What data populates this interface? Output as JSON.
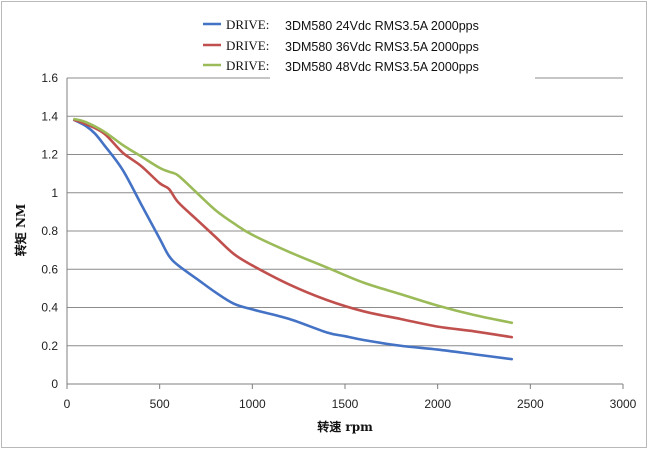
{
  "chart_data": {
    "type": "line",
    "title": "",
    "xlabel": "转速 rpm",
    "ylabel": "转矩 NM",
    "xlim": [
      0,
      3000
    ],
    "ylim": [
      0,
      1.6
    ],
    "x_ticks": [
      "0",
      "500",
      "1000",
      "1500",
      "2000",
      "2500",
      "3000"
    ],
    "y_ticks": [
      "0",
      "0.2",
      "0.4",
      "0.6",
      "0.8",
      "1",
      "1.2",
      "1.4",
      "1.6"
    ],
    "grid": "horizontal",
    "legend": "top-center",
    "series": [
      {
        "name": "DRIVE:",
        "label": "3DM580 24Vdc RMS3.5A 2000pps",
        "color": "#4472C4",
        "x": [
          40,
          100,
          150,
          200,
          300,
          400,
          500,
          550,
          600,
          700,
          800,
          900,
          1000,
          1200,
          1400,
          1500,
          1600,
          1800,
          2000,
          2200,
          2400
        ],
        "y": [
          1.38,
          1.35,
          1.31,
          1.25,
          1.12,
          0.94,
          0.76,
          0.67,
          0.62,
          0.55,
          0.48,
          0.42,
          0.39,
          0.34,
          0.27,
          0.25,
          0.23,
          0.2,
          0.18,
          0.155,
          0.13
        ]
      },
      {
        "name": "DRIVE:",
        "label": "3DM580 36Vdc RMS3.5A 2000pps",
        "color": "#C0504D",
        "x": [
          40,
          100,
          200,
          300,
          400,
          500,
          550,
          600,
          700,
          800,
          900,
          1000,
          1200,
          1400,
          1600,
          1800,
          2000,
          2200,
          2400
        ],
        "y": [
          1.38,
          1.36,
          1.31,
          1.21,
          1.14,
          1.05,
          1.02,
          0.95,
          0.86,
          0.77,
          0.68,
          0.62,
          0.52,
          0.44,
          0.38,
          0.34,
          0.3,
          0.275,
          0.245
        ]
      },
      {
        "name": "DRIVE:",
        "label": "3DM580 48Vdc RMS3.5A 2000pps",
        "color": "#9BBB59",
        "x": [
          40,
          100,
          200,
          300,
          400,
          500,
          550,
          600,
          700,
          800,
          900,
          1000,
          1200,
          1400,
          1600,
          1800,
          2000,
          2200,
          2400
        ],
        "y": [
          1.385,
          1.37,
          1.32,
          1.25,
          1.19,
          1.13,
          1.11,
          1.09,
          1.0,
          0.91,
          0.84,
          0.78,
          0.69,
          0.61,
          0.53,
          0.47,
          0.41,
          0.36,
          0.32
        ]
      }
    ]
  }
}
